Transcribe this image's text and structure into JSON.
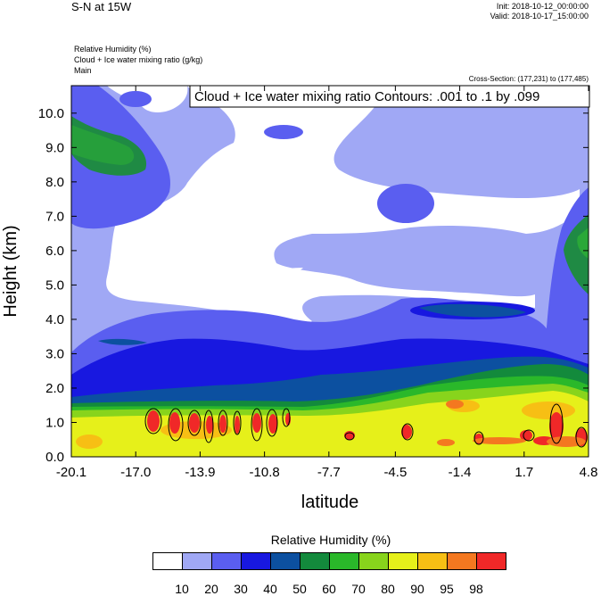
{
  "header": {
    "title": "S-N at 15W",
    "init": "Init: 2018-10-12_00:00:00",
    "valid": "Valid: 2018-10-17_15:00:00",
    "fields": [
      "Relative Humidity   (%)",
      "Cloud + Ice water mixing ratio   (g/kg)",
      "Main"
    ],
    "cross_section": "Cross-Section: (177,231) to (177,485)"
  },
  "chart_data": {
    "type": "heatmap",
    "title": "S-N at 15W",
    "xlabel": "latitude",
    "ylabel": "Height (km)",
    "xlim": [
      -20.1,
      4.8
    ],
    "ylim": [
      0.0,
      10.8
    ],
    "x_ticks": [
      "-20.1",
      "-17.0",
      "-13.9",
      "-10.8",
      "-7.7",
      "-4.5",
      "-1.4",
      "1.7",
      "4.8"
    ],
    "y_ticks": [
      "0.0",
      "1.0",
      "2.0",
      "3.0",
      "4.0",
      "5.0",
      "6.0",
      "7.0",
      "8.0",
      "9.0",
      "10.0"
    ],
    "contour_annotation": "Cloud + Ice water mixing ratio Contours: .001 to .1 by .099",
    "colorbar": {
      "title": "Relative Humidity  (%)",
      "levels": [
        "10",
        "20",
        "30",
        "40",
        "50",
        "60",
        "70",
        "80",
        "90",
        "95",
        "98"
      ],
      "colors": [
        "#ffffff",
        "#a0a8f5",
        "#5a5ef0",
        "#1818e0",
        "#0c50a0",
        "#138a3c",
        "#2ab82a",
        "#88d41c",
        "#e6f01a",
        "#f7bf14",
        "#f47820",
        "#f02828"
      ]
    }
  }
}
